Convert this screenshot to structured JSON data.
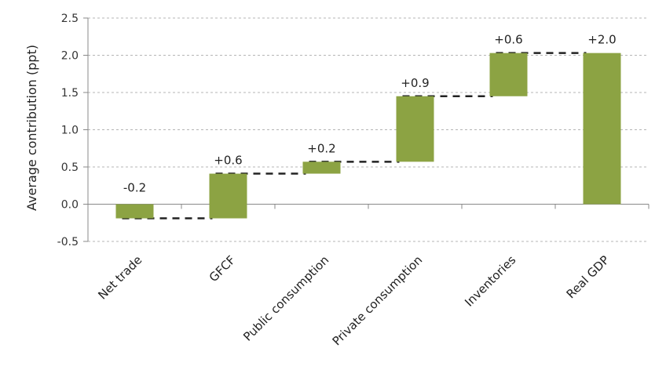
{
  "chart_data": {
    "type": "bar",
    "subtype": "waterfall",
    "title": "",
    "xlabel": "",
    "ylabel": "Average contribution (ppt)",
    "ylim": [
      -0.5,
      2.5
    ],
    "yticks": [
      "-0.5",
      "0.0",
      "0.5",
      "1.0",
      "1.5",
      "2.0",
      "2.5"
    ],
    "grid": true,
    "bar_color": "#8ca343",
    "connector_color": "#222222",
    "categories": [
      "Net trade",
      "GFCF",
      "Public consumption",
      "Private consumption",
      "Inventories",
      "Real GDP"
    ],
    "values": [
      -0.2,
      0.6,
      0.2,
      0.9,
      0.6,
      2.0
    ],
    "bar_bases": [
      0,
      -0.19,
      0.41,
      0.57,
      1.45,
      0
    ],
    "bar_tops": [
      -0.19,
      0.41,
      0.57,
      1.45,
      2.03,
      2.03
    ],
    "data_labels": [
      "-0.2",
      "+0.6",
      "+0.2",
      "+0.9",
      "+0.6",
      "+2.0"
    ]
  }
}
